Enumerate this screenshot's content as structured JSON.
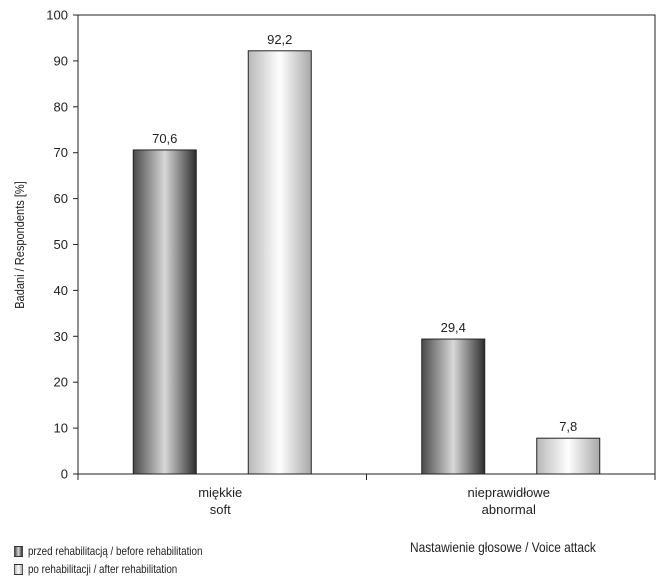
{
  "chart_data": {
    "type": "bar",
    "categories": [
      [
        "miękkie",
        "soft"
      ],
      [
        "nieprawidłowe",
        "abnormal"
      ]
    ],
    "series": [
      {
        "name": "przed rehabilitacją / before rehabilitation",
        "values": [
          70.6,
          29.4
        ],
        "labels": [
          "70,6",
          "29,4"
        ]
      },
      {
        "name": "po rehabilitacji / after rehabilitation",
        "values": [
          92.2,
          7.8
        ],
        "labels": [
          "92,2",
          "7,8"
        ]
      }
    ],
    "xlabel": "Nastawienie głosowe / Voice attack",
    "ylabel": "Badani / Respondents [%]",
    "ylim": [
      0,
      100
    ],
    "yticks": [
      "0",
      "10",
      "20",
      "30",
      "40",
      "50",
      "60",
      "70",
      "80",
      "90",
      "100"
    ],
    "grid": false,
    "legend_position": "bottom-left"
  },
  "colors": {
    "series_dark": "#3a3a3a",
    "series_light": "#d0d0d0",
    "axis": "#222222"
  }
}
